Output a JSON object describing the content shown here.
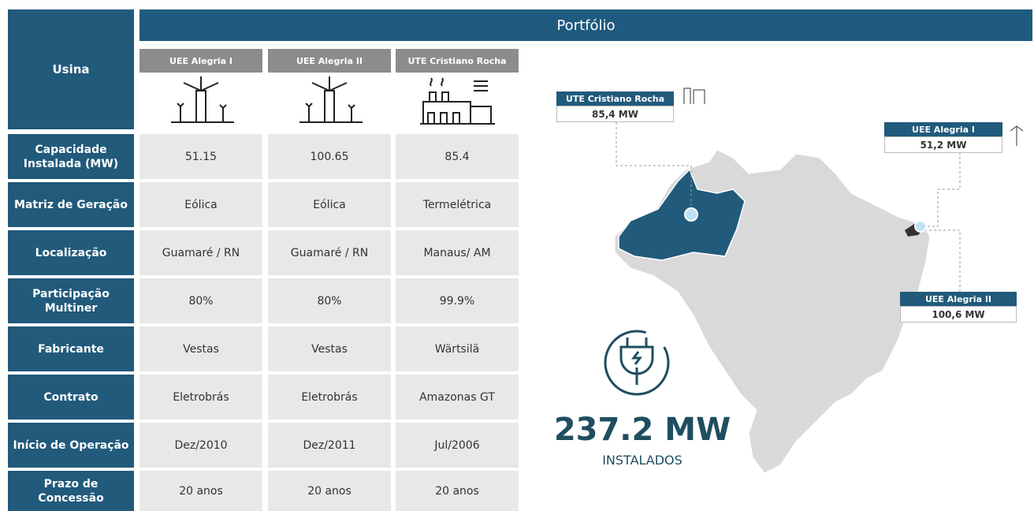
{
  "header": {
    "title": "Portfólio"
  },
  "table": {
    "corner_label": "Usina",
    "columns": [
      "UEE Alegria I",
      "UEE Alegria II",
      "UTE Cristiano Rocha"
    ],
    "rows": [
      {
        "label": "Capacidade Instalada (MW)",
        "cells": [
          "51.15",
          "100.65",
          "85.4"
        ]
      },
      {
        "label": "Matriz de Geração",
        "cells": [
          "Eólica",
          "Eólica",
          "Termelétrica"
        ]
      },
      {
        "label": "Localização",
        "cells": [
          "Guamaré / RN",
          "Guamaré / RN",
          "Manaus/ AM"
        ]
      },
      {
        "label": "Participação Multiner",
        "cells": [
          "80%",
          "80%",
          "99.9%"
        ]
      },
      {
        "label": "Fabricante",
        "cells": [
          "Vestas",
          "Vestas",
          "Wärtsilä"
        ]
      },
      {
        "label": "Contrato",
        "cells": [
          "Eletrobrás",
          "Eletrobrás",
          "Amazonas GT"
        ]
      },
      {
        "label": "Início de Operação",
        "cells": [
          "Dez/2010",
          "Dez/2011",
          "Jul/2006"
        ]
      },
      {
        "label": "Prazo de Concessão",
        "cells": [
          "20 anos",
          "20 anos",
          "20 anos"
        ]
      }
    ]
  },
  "map": {
    "callouts": [
      {
        "name": "UTE Cristiano Rocha",
        "value": "85,4 MW"
      },
      {
        "name": "UEE Alegria I",
        "value": "51,2 MW"
      },
      {
        "name": "UEE Alegria II",
        "value": "100,6 MW"
      }
    ]
  },
  "summary": {
    "total": "237.2 MW",
    "caption": "INSTALADOS"
  }
}
